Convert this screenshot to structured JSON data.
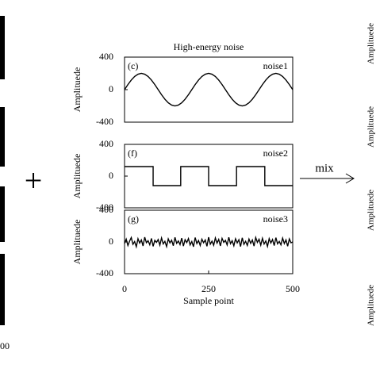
{
  "chart_data": [
    {
      "type": "line",
      "title": "High-energy noise",
      "panel_label": "(c)",
      "ylabel": "Amplituede",
      "x": [
        0,
        10,
        20,
        30,
        40,
        50,
        60,
        70,
        80,
        90,
        100,
        110,
        120,
        130,
        140,
        150,
        160,
        170,
        180,
        190,
        200,
        210,
        220,
        230,
        240,
        250,
        260,
        270,
        280,
        290,
        300,
        310,
        320,
        330,
        340,
        350,
        360,
        370,
        380,
        390,
        400,
        410,
        420,
        430,
        440,
        450,
        460,
        470,
        480,
        490,
        500
      ],
      "series": [
        {
          "name": "noise1",
          "color": "#000000",
          "values": [
            0,
            62,
            118,
            162,
            190,
            200,
            190,
            162,
            118,
            62,
            0,
            -62,
            -118,
            -162,
            -190,
            -200,
            -190,
            -162,
            -118,
            -62,
            0,
            62,
            118,
            162,
            190,
            200,
            190,
            162,
            118,
            62,
            0,
            -62,
            -118,
            -162,
            -190,
            -200,
            -190,
            -162,
            -118,
            -62,
            0,
            62,
            118,
            162,
            190,
            200,
            190,
            162,
            118,
            62,
            0
          ]
        }
      ],
      "xlim": [
        0,
        500
      ],
      "ylim": [
        -400,
        400
      ],
      "yticks": [
        -400,
        0,
        400
      ]
    },
    {
      "type": "line",
      "panel_label": "(f)",
      "ylabel": "Amplituede",
      "x": [
        0,
        85,
        85,
        167,
        167,
        250,
        250,
        333,
        333,
        417,
        417,
        500
      ],
      "series": [
        {
          "name": "noise2",
          "color": "#000000",
          "values": [
            120,
            120,
            -120,
            -120,
            120,
            120,
            -120,
            -120,
            120,
            120,
            -120,
            -120
          ]
        }
      ],
      "xlim": [
        0,
        500
      ],
      "ylim": [
        -400,
        400
      ],
      "yticks": [
        -400,
        0,
        400
      ]
    },
    {
      "type": "line",
      "panel_label": "(g)",
      "ylabel": "Amplituede",
      "xlabel": "Sample point",
      "x": [
        0,
        5,
        10,
        15,
        20,
        25,
        30,
        35,
        40,
        45,
        50,
        55,
        60,
        65,
        70,
        75,
        80,
        85,
        90,
        95,
        100,
        105,
        110,
        115,
        120,
        125,
        130,
        135,
        140,
        145,
        150,
        155,
        160,
        165,
        170,
        175,
        180,
        185,
        190,
        195,
        200,
        205,
        210,
        215,
        220,
        225,
        230,
        235,
        240,
        245,
        250,
        255,
        260,
        265,
        270,
        275,
        280,
        285,
        290,
        295,
        300,
        305,
        310,
        315,
        320,
        325,
        330,
        335,
        340,
        345,
        350,
        355,
        360,
        365,
        370,
        375,
        380,
        385,
        390,
        395,
        400,
        405,
        410,
        415,
        420,
        425,
        430,
        435,
        440,
        445,
        450,
        455,
        460,
        465,
        470,
        475,
        480,
        485,
        490,
        495,
        500
      ],
      "series": [
        {
          "name": "noise3",
          "color": "#000000",
          "values": [
            -20,
            35,
            -45,
            10,
            55,
            -30,
            5,
            -60,
            40,
            -15,
            25,
            -50,
            60,
            -10,
            15,
            -35,
            45,
            -55,
            20,
            -5,
            30,
            -40,
            50,
            -25,
            8,
            -58,
            38,
            -12,
            22,
            -48,
            58,
            -18,
            12,
            -33,
            48,
            -52,
            28,
            -8,
            42,
            -38,
            5,
            -60,
            55,
            -20,
            18,
            -45,
            35,
            -10,
            25,
            -55,
            60,
            -28,
            10,
            -42,
            50,
            -15,
            32,
            -50,
            45,
            -5,
            20,
            -38,
            58,
            -22,
            15,
            -48,
            40,
            -12,
            28,
            -58,
            52,
            -30,
            8,
            -44,
            36,
            -18,
            24,
            -52,
            56,
            -6,
            34,
            -40,
            46,
            -26,
            12,
            -56,
            42,
            -14,
            30,
            -46,
            54,
            -24,
            6,
            -36,
            48,
            -20,
            26,
            -54,
            38,
            -10,
            0
          ]
        }
      ],
      "xlim": [
        0,
        500
      ],
      "xticks": [
        0,
        250,
        500
      ],
      "ylim": [
        -400,
        400
      ],
      "yticks": [
        -400,
        0,
        400
      ]
    }
  ],
  "figure": {
    "plus": "+",
    "mix_label": "mix",
    "left_fragment": "00",
    "right_axis_labels": [
      "Amplituede",
      "Amplituede",
      "Amplituede",
      "Amplituede"
    ]
  }
}
